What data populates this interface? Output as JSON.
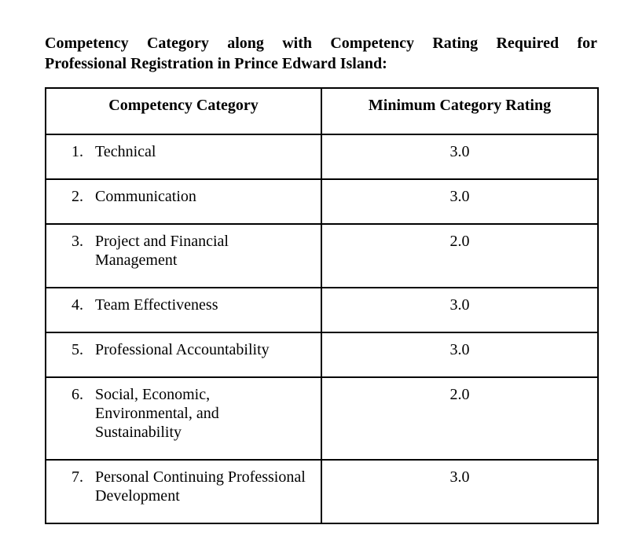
{
  "title": {
    "line1": "Competency Category along with Competency Rating Required for",
    "line2": "Professional Registration in Prince Edward Island:"
  },
  "table": {
    "headers": [
      "Competency Category",
      "Minimum Category Rating"
    ],
    "rows": [
      {
        "number": "1.",
        "category": "Technical",
        "rating": "3.0"
      },
      {
        "number": "2.",
        "category": "Communication",
        "rating": "3.0"
      },
      {
        "number": "3.",
        "category": "Project and Financial\nManagement",
        "rating": "2.0"
      },
      {
        "number": "4.",
        "category": "Team Effectiveness",
        "rating": "3.0"
      },
      {
        "number": "5.",
        "category": "Professional Accountability",
        "rating": "3.0"
      },
      {
        "number": "6.",
        "category": "Social, Economic,\nEnvironmental, and\nSustainability",
        "rating": "2.0"
      },
      {
        "number": "7.",
        "category": "Personal Continuing Professional\nDevelopment",
        "rating": "3.0"
      }
    ]
  },
  "colors": {
    "text": "#000000",
    "border": "#000000",
    "background": "#ffffff"
  }
}
